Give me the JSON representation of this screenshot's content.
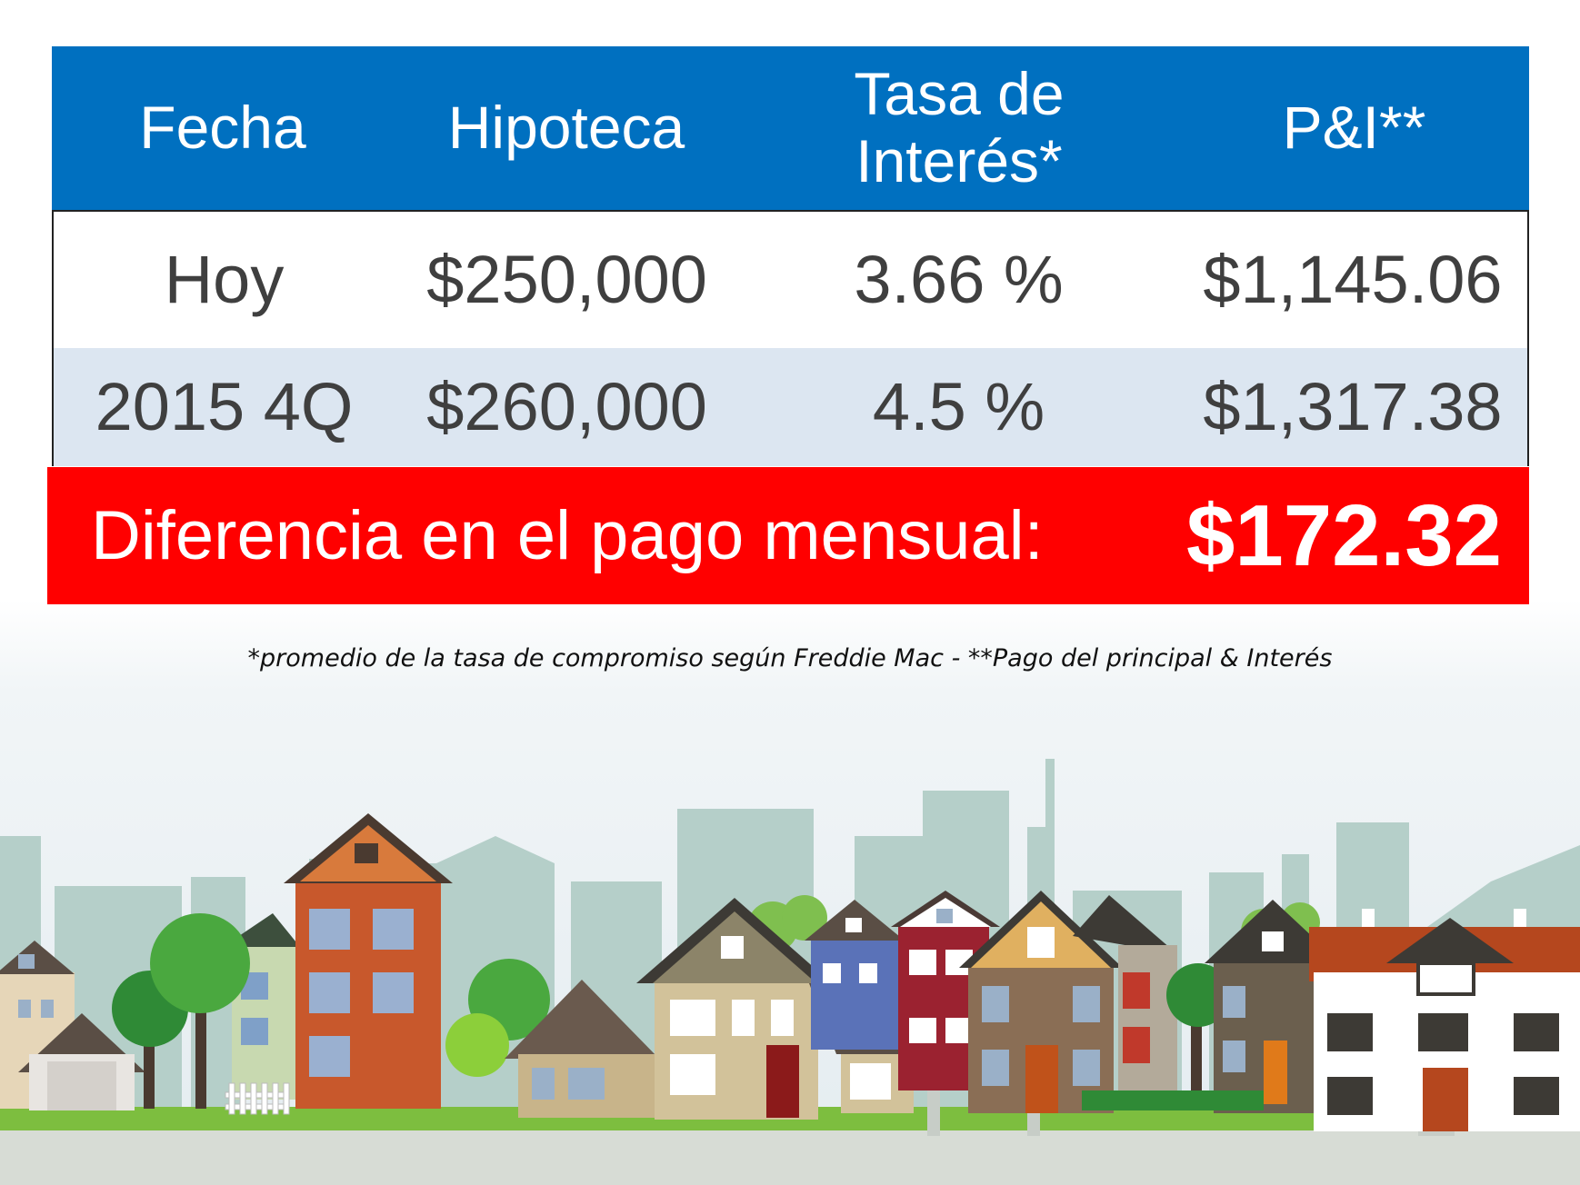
{
  "table": {
    "headers": [
      "Fecha",
      "Hipoteca",
      "Tasa de Interés*",
      "P&I**"
    ],
    "rows": [
      [
        "Hoy",
        "$250,000",
        "3.66 %",
        "$1,145.06"
      ],
      [
        "2015 4Q",
        "$260,000",
        "4.5 %",
        "$1,317.38"
      ]
    ]
  },
  "difference": {
    "label": "Diferencia en el pago mensual:",
    "value": "$172.32"
  },
  "footnote": "*promedio de la tasa de compromiso según Freddie Mac - **Pago del principal & Interés",
  "colors": {
    "header_blue": "#0070c0",
    "row_alt": "#dce6f1",
    "highlight_red": "#ff0000"
  }
}
